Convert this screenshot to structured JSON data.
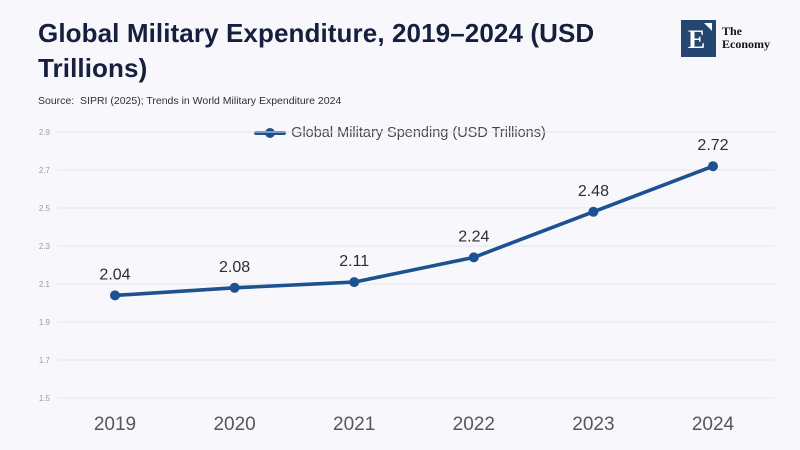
{
  "header": {
    "title": "Global Military Expenditure, 2019–2024 (USD Trillions)",
    "source": "Source:  SIPRI (2025); Trends in World Military Expenditure 2024"
  },
  "logo": {
    "monogram": "E",
    "name_line1": "The",
    "name_line2": "Economy",
    "square_color": "#25476f"
  },
  "chart_data": {
    "type": "line",
    "title": "Global Military Expenditure, 2019–2024 (USD Trillions)",
    "categories": [
      "2019",
      "2020",
      "2021",
      "2022",
      "2023",
      "2024"
    ],
    "series": [
      {
        "name": "Global Military Spending (USD Trillions)",
        "values": [
          2.04,
          2.08,
          2.11,
          2.24,
          2.48,
          2.72
        ]
      }
    ],
    "point_labels": [
      "2.04",
      "2.08",
      "2.11",
      "2.24",
      "2.48",
      "2.72"
    ],
    "y_ticks": [
      "2.9",
      "2.7",
      "2.5",
      "2.3",
      "2.1",
      "1.9",
      "1.7",
      "1.5"
    ],
    "ylim": [
      1.5,
      2.9
    ],
    "xlabel": "",
    "ylabel": "",
    "grid": true,
    "legend_position": "top-center",
    "line_color": "#1d5190",
    "grid_color": "#e3e4ea",
    "y_tick_color": "#9a9aa4",
    "x_label_color": "#56565e",
    "point_label_color": "#2d2d33"
  }
}
